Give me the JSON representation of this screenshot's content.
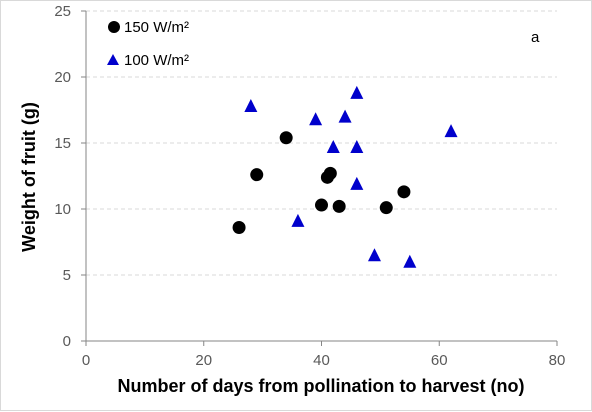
{
  "chart_data": {
    "type": "scatter",
    "panel_label": "a",
    "xlabel": "Number of days from pollination to harvest (no)",
    "ylabel": "Weight of fruit (g)",
    "xlim": [
      0,
      80
    ],
    "ylim": [
      0,
      25
    ],
    "xticks": [
      "0",
      "20",
      "40",
      "60",
      "80"
    ],
    "yticks": [
      "0",
      "5",
      "10",
      "15",
      "20",
      "25"
    ],
    "grid": "horizontal dashed",
    "legend_position": "top-left",
    "series": [
      {
        "name": "150 W/m²",
        "marker": "circle",
        "color": "#000000",
        "points": [
          {
            "x": 26,
            "y": 8.6
          },
          {
            "x": 29,
            "y": 12.6
          },
          {
            "x": 34,
            "y": 15.4
          },
          {
            "x": 40,
            "y": 10.3
          },
          {
            "x": 41,
            "y": 12.4
          },
          {
            "x": 41.5,
            "y": 12.7
          },
          {
            "x": 43,
            "y": 10.2
          },
          {
            "x": 51,
            "y": 10.1
          },
          {
            "x": 54,
            "y": 11.3
          }
        ]
      },
      {
        "name": "100 W/m²",
        "marker": "triangle",
        "color": "#0000cc",
        "points": [
          {
            "x": 28,
            "y": 17.8
          },
          {
            "x": 36,
            "y": 9.1
          },
          {
            "x": 39,
            "y": 16.8
          },
          {
            "x": 42,
            "y": 14.7
          },
          {
            "x": 44,
            "y": 17.0
          },
          {
            "x": 46,
            "y": 18.8
          },
          {
            "x": 46,
            "y": 14.7
          },
          {
            "x": 46,
            "y": 11.9
          },
          {
            "x": 49,
            "y": 6.5
          },
          {
            "x": 55,
            "y": 6.0
          },
          {
            "x": 62,
            "y": 15.9
          }
        ]
      }
    ]
  }
}
